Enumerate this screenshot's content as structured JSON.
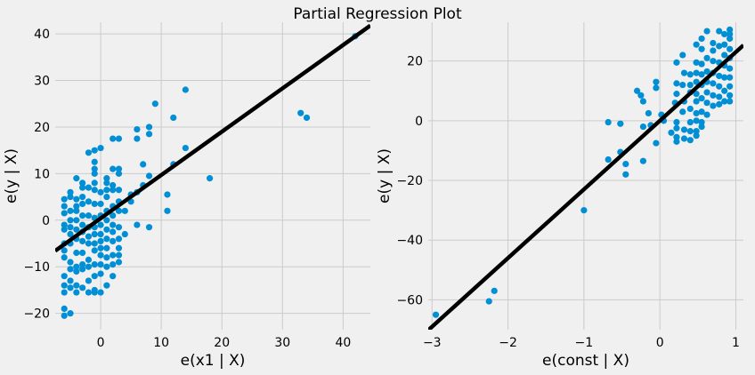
{
  "figure": {
    "title": "Partial Regression Plot",
    "background": "#f0f0f0",
    "marker_color": "#008fd5",
    "line_color": "#000000",
    "grid_color": "#cbcbcb"
  },
  "chart_data": [
    {
      "type": "scatter",
      "xlabel": "e(x1 | X)",
      "ylabel": "e(y | X)",
      "xlim": [
        -7.5,
        44.5
      ],
      "ylim": [
        -23.5,
        42.5
      ],
      "xticks": [
        0,
        10,
        20,
        30,
        40
      ],
      "xtick_labels": [
        "0",
        "10",
        "20",
        "30",
        "40"
      ],
      "yticks": [
        -20,
        -10,
        0,
        10,
        20,
        30,
        40
      ],
      "ytick_labels": [
        "−20",
        "−10",
        "0",
        "10",
        "20",
        "30",
        "40"
      ],
      "grid": true,
      "fit_line": {
        "slope": 0.93,
        "intercept": 0.4
      },
      "points": [
        [
          -6,
          4.5
        ],
        [
          -6,
          3
        ],
        [
          -6,
          1.5
        ],
        [
          -6,
          -1
        ],
        [
          -6,
          -2
        ],
        [
          -6,
          -5
        ],
        [
          -6,
          -6.5
        ],
        [
          -6,
          -8
        ],
        [
          -6,
          -12
        ],
        [
          -6,
          -14
        ],
        [
          -6,
          -15.5
        ],
        [
          -6,
          -19
        ],
        [
          -6,
          -20.5
        ],
        [
          -5,
          6
        ],
        [
          -5,
          5
        ],
        [
          -5,
          2
        ],
        [
          -5,
          0
        ],
        [
          -5,
          -1.5
        ],
        [
          -5,
          -3
        ],
        [
          -5,
          -5
        ],
        [
          -5,
          -9
        ],
        [
          -5,
          -10.5
        ],
        [
          -5,
          -13
        ],
        [
          -5,
          -14.5
        ],
        [
          -5,
          -20
        ],
        [
          -4,
          9
        ],
        [
          -4,
          4.5
        ],
        [
          -4,
          3
        ],
        [
          -4,
          2
        ],
        [
          -4,
          0
        ],
        [
          -4,
          -2
        ],
        [
          -4,
          -4
        ],
        [
          -4,
          -7
        ],
        [
          -4,
          -10
        ],
        [
          -4,
          -11
        ],
        [
          -4,
          -14
        ],
        [
          -4,
          -15.5
        ],
        [
          -3,
          8
        ],
        [
          -3,
          7
        ],
        [
          -3,
          5
        ],
        [
          -3,
          3.5
        ],
        [
          -3,
          1
        ],
        [
          -3,
          -1
        ],
        [
          -3,
          -2.5
        ],
        [
          -3,
          -4.5
        ],
        [
          -3,
          -7
        ],
        [
          -3,
          -9.5
        ],
        [
          -3,
          -10.5
        ],
        [
          -3,
          -14.5
        ],
        [
          -2,
          14.5
        ],
        [
          -2,
          7
        ],
        [
          -2,
          4
        ],
        [
          -2,
          1
        ],
        [
          -2,
          -1.5
        ],
        [
          -2,
          -3.5
        ],
        [
          -2,
          -5
        ],
        [
          -2,
          -8.5
        ],
        [
          -2,
          -10
        ],
        [
          -2,
          -13
        ],
        [
          -2,
          -15.5
        ],
        [
          -1,
          15
        ],
        [
          -1,
          12.5
        ],
        [
          -1,
          11
        ],
        [
          -1,
          10
        ],
        [
          -1,
          8
        ],
        [
          -1,
          6.5
        ],
        [
          -1,
          3.5
        ],
        [
          -1,
          0.5
        ],
        [
          -1,
          -1.5
        ],
        [
          -1,
          -3
        ],
        [
          -1,
          -5
        ],
        [
          -1,
          -6.5
        ],
        [
          -1,
          -9.5
        ],
        [
          -1,
          -12
        ],
        [
          -1,
          -15
        ],
        [
          -1,
          -15.5
        ],
        [
          0,
          15.5
        ],
        [
          0,
          6
        ],
        [
          0,
          3.5
        ],
        [
          0,
          1
        ],
        [
          0,
          -1
        ],
        [
          0,
          -3
        ],
        [
          0,
          -4.5
        ],
        [
          0,
          -6
        ],
        [
          0,
          -7.5
        ],
        [
          0,
          -9.5
        ],
        [
          0,
          -11.5
        ],
        [
          0,
          -15.5
        ],
        [
          1,
          9
        ],
        [
          1,
          8
        ],
        [
          1,
          6.5
        ],
        [
          1,
          5
        ],
        [
          1,
          2
        ],
        [
          1,
          0
        ],
        [
          1,
          -2
        ],
        [
          1,
          -4
        ],
        [
          1,
          -6
        ],
        [
          1,
          -8
        ],
        [
          1,
          -10
        ],
        [
          1,
          -14
        ],
        [
          2,
          17.5
        ],
        [
          2,
          11
        ],
        [
          2,
          7.5
        ],
        [
          2,
          6.5
        ],
        [
          2,
          3
        ],
        [
          2,
          1
        ],
        [
          2,
          -1
        ],
        [
          2,
          -2.5
        ],
        [
          2,
          -4.5
        ],
        [
          2,
          -7.5
        ],
        [
          2,
          -9.5
        ],
        [
          2,
          -12
        ],
        [
          3,
          17.5
        ],
        [
          3,
          11
        ],
        [
          3,
          10
        ],
        [
          3,
          6.5
        ],
        [
          3,
          4
        ],
        [
          3,
          2
        ],
        [
          3,
          -1.5
        ],
        [
          3,
          -4
        ],
        [
          3,
          -6
        ],
        [
          3,
          -7.5
        ],
        [
          3,
          -9
        ],
        [
          4,
          2
        ],
        [
          4,
          -3
        ],
        [
          5,
          5.5
        ],
        [
          5,
          4
        ],
        [
          6,
          19.5
        ],
        [
          6,
          17.5
        ],
        [
          6,
          6
        ],
        [
          6,
          -1
        ],
        [
          7,
          12
        ],
        [
          7,
          7.5
        ],
        [
          8,
          20
        ],
        [
          8,
          18.5
        ],
        [
          8,
          9.5
        ],
        [
          8,
          -1.5
        ],
        [
          9,
          25
        ],
        [
          11,
          5.5
        ],
        [
          11,
          2
        ],
        [
          12,
          22
        ],
        [
          12,
          12
        ],
        [
          14,
          28
        ],
        [
          14,
          15.5
        ],
        [
          18,
          9
        ],
        [
          33,
          23
        ],
        [
          34,
          22
        ],
        [
          42,
          39.5
        ]
      ]
    },
    {
      "type": "scatter",
      "xlabel": "e(const | X)",
      "ylabel": "e(y | X)",
      "xlim": [
        -3.05,
        1.1
      ],
      "ylim": [
        -70,
        33
      ],
      "xticks": [
        -3,
        -2,
        -1,
        0,
        1
      ],
      "xtick_labels": [
        "−3",
        "−2",
        "−1",
        "0",
        "1"
      ],
      "yticks": [
        -60,
        -40,
        -20,
        0,
        20
      ],
      "ytick_labels": [
        "−60",
        "−40",
        "−20",
        "0",
        "20"
      ],
      "grid": true,
      "fit_line": {
        "slope": 23.0,
        "intercept": 0
      },
      "points": [
        [
          -2.95,
          -65
        ],
        [
          -2.25,
          -60.5
        ],
        [
          -2.18,
          -57
        ],
        [
          -1.0,
          -30
        ],
        [
          -0.68,
          -13
        ],
        [
          -0.68,
          -0.5
        ],
        [
          -0.52,
          -10.5
        ],
        [
          -0.52,
          -1
        ],
        [
          -0.45,
          -14.5
        ],
        [
          -0.45,
          -18
        ],
        [
          -0.3,
          10
        ],
        [
          -0.25,
          8.5
        ],
        [
          -0.22,
          6.5
        ],
        [
          -0.22,
          -2
        ],
        [
          -0.22,
          -13.5
        ],
        [
          -0.15,
          2.5
        ],
        [
          -0.12,
          -1.5
        ],
        [
          -0.05,
          13
        ],
        [
          -0.05,
          11
        ],
        [
          -0.05,
          -7.5
        ],
        [
          0.02,
          2
        ],
        [
          0.05,
          0
        ],
        [
          0.15,
          -4
        ],
        [
          0.2,
          6
        ],
        [
          0.22,
          19.5
        ],
        [
          0.22,
          12.5
        ],
        [
          0.22,
          9
        ],
        [
          0.22,
          -0.5
        ],
        [
          0.22,
          -2.5
        ],
        [
          0.22,
          -5.5
        ],
        [
          0.22,
          -7
        ],
        [
          0.3,
          22
        ],
        [
          0.3,
          12
        ],
        [
          0.3,
          3
        ],
        [
          0.32,
          16
        ],
        [
          0.32,
          6.5
        ],
        [
          0.32,
          -3
        ],
        [
          0.32,
          -6
        ],
        [
          0.4,
          15.5
        ],
        [
          0.4,
          12
        ],
        [
          0.4,
          9.5
        ],
        [
          0.4,
          4
        ],
        [
          0.4,
          -0.5
        ],
        [
          0.4,
          -3.5
        ],
        [
          0.4,
          -6.5
        ],
        [
          0.48,
          25.5
        ],
        [
          0.48,
          19.5
        ],
        [
          0.48,
          16
        ],
        [
          0.48,
          13
        ],
        [
          0.48,
          9
        ],
        [
          0.48,
          6.5
        ],
        [
          0.48,
          2.5
        ],
        [
          0.48,
          0
        ],
        [
          0.48,
          -3.5
        ],
        [
          0.48,
          -5
        ],
        [
          0.55,
          27.5
        ],
        [
          0.55,
          24
        ],
        [
          0.55,
          19
        ],
        [
          0.55,
          15.5
        ],
        [
          0.55,
          12
        ],
        [
          0.55,
          7.5
        ],
        [
          0.55,
          3
        ],
        [
          0.55,
          -0.5
        ],
        [
          0.55,
          -2
        ],
        [
          0.62,
          30
        ],
        [
          0.62,
          21
        ],
        [
          0.62,
          16.5
        ],
        [
          0.62,
          13
        ],
        [
          0.62,
          9.5
        ],
        [
          0.62,
          6
        ],
        [
          0.62,
          2
        ],
        [
          0.7,
          26
        ],
        [
          0.7,
          23.5
        ],
        [
          0.7,
          20
        ],
        [
          0.7,
          16
        ],
        [
          0.7,
          12.5
        ],
        [
          0.7,
          8.5
        ],
        [
          0.7,
          5
        ],
        [
          0.78,
          30
        ],
        [
          0.78,
          25
        ],
        [
          0.78,
          19.5
        ],
        [
          0.78,
          15
        ],
        [
          0.78,
          11.5
        ],
        [
          0.78,
          8
        ],
        [
          0.78,
          5.5
        ],
        [
          0.85,
          29
        ],
        [
          0.85,
          25.5
        ],
        [
          0.85,
          22
        ],
        [
          0.85,
          18.5
        ],
        [
          0.85,
          14.5
        ],
        [
          0.85,
          10
        ],
        [
          0.85,
          6.5
        ],
        [
          0.92,
          30.5
        ],
        [
          0.92,
          29
        ],
        [
          0.92,
          27.5
        ],
        [
          0.92,
          24
        ],
        [
          0.92,
          21
        ],
        [
          0.92,
          17.5
        ],
        [
          0.92,
          14.5
        ],
        [
          0.92,
          11.5
        ],
        [
          0.92,
          8.5
        ],
        [
          0.92,
          6.5
        ]
      ]
    }
  ]
}
